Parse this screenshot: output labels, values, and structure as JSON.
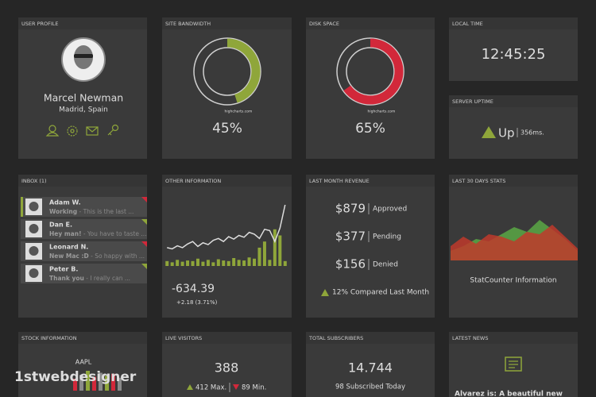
{
  "profile": {
    "title": "USER PROFILE",
    "name": "Marcel Newman",
    "location": "Madrid, Spain"
  },
  "bandwidth": {
    "title": "SITE BANDWIDTH",
    "value": 45,
    "label": "45%",
    "credit": "highcharts.com",
    "color": "#8fa63a"
  },
  "disk": {
    "title": "DISK SPACE",
    "value": 65,
    "label": "65%",
    "credit": "highcharts.com",
    "color": "#d2283a"
  },
  "time": {
    "title": "LOCAL TIME",
    "value": "12:45:25"
  },
  "uptime": {
    "title": "SERVER UPTIME",
    "status": "Up",
    "ping": "356ms."
  },
  "inbox": {
    "title": "INBOX (1)",
    "messages": [
      {
        "name": "Adam W.",
        "status": "Working",
        "preview": " - This is the last ..."
      },
      {
        "name": "Dan E.",
        "status": "Hey man!",
        "preview": " - You have to taste ..."
      },
      {
        "name": "Leonard N.",
        "status": "New Mac :D",
        "preview": " - So happy with ..."
      },
      {
        "name": "Peter B.",
        "status": "Thank you",
        "preview": " - I really can ..."
      }
    ]
  },
  "other": {
    "title": "OTHER INFORMATION",
    "value": "-634.39",
    "change": "+2.18 (3.71%)",
    "chart_data": {
      "type": "line",
      "ylim": [
        0,
        100
      ],
      "color": "#dddddd",
      "bar_color": "#8fa63a",
      "values": [
        30,
        28,
        33,
        30,
        36,
        40,
        32,
        38,
        35,
        42,
        45,
        40,
        48,
        44,
        50,
        47,
        55,
        52,
        45,
        60,
        58,
        40,
        62,
        100
      ],
      "bars": [
        8,
        6,
        10,
        7,
        9,
        8,
        12,
        7,
        10,
        6,
        11,
        9,
        8,
        13,
        10,
        9,
        14,
        12,
        30,
        40,
        10,
        60,
        50,
        8
      ]
    }
  },
  "revenue": {
    "title": "LAST MONTH REVENUE",
    "items": [
      {
        "amount": "$879",
        "status": "Approved",
        "color": "#8fa63a"
      },
      {
        "amount": "$377",
        "status": "Pending",
        "color": "#cccccc"
      },
      {
        "amount": "$156",
        "status": "Denied",
        "color": "#d2283a"
      }
    ],
    "compare": "12% Compared Last Month"
  },
  "stats": {
    "title": "LAST 30 DAYS STATS",
    "caption": "StatCounter Information",
    "chart_data": {
      "type": "area",
      "ylim": [
        0,
        100
      ],
      "series": [
        {
          "name": "green",
          "color": "#5aa845",
          "values": [
            20,
            30,
            45,
            40,
            55,
            70,
            60,
            85,
            65,
            45,
            20
          ]
        },
        {
          "name": "red",
          "color": "#c0392b",
          "values": [
            30,
            50,
            35,
            55,
            50,
            40,
            60,
            55,
            75,
            50,
            25
          ]
        }
      ]
    }
  },
  "stock": {
    "title": "STOCK INFORMATION",
    "symbol": "AAPL",
    "chart_data": {
      "type": "bar",
      "ylim": [
        0,
        100
      ],
      "colors": [
        "#d2283a",
        "#8a8a8a",
        "#8fa63a"
      ],
      "values": [
        60,
        80,
        100,
        70,
        90,
        75,
        85,
        65
      ]
    }
  },
  "visitors": {
    "title": "LIVE VISITORS",
    "value": "388",
    "max": "412 Max.",
    "min": "89 Min."
  },
  "subscribers": {
    "title": "TOTAL SUBSCRIBERS",
    "value": "14.744",
    "today": "98 Subscribed Today"
  },
  "news": {
    "title": "LATEST NEWS",
    "headline": "Alvarez is: A beautiful new"
  },
  "watermark": "1stwebdesigner"
}
